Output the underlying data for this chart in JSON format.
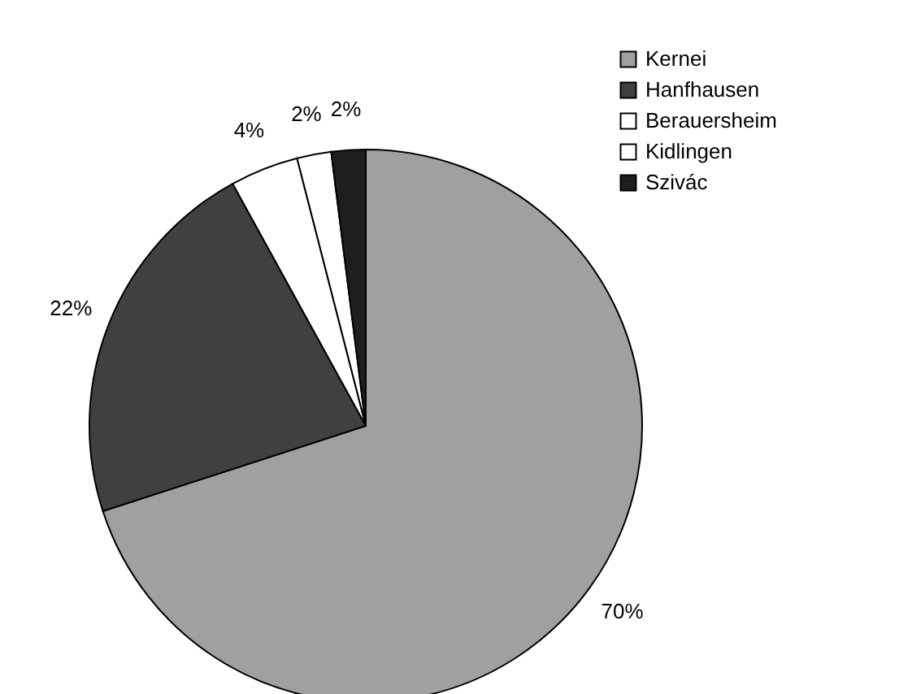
{
  "chart_data": {
    "type": "pie",
    "categories": [
      "Kernei",
      "Hanfhausen",
      "Berauersheim",
      "Kidlingen",
      "Szivác"
    ],
    "values": [
      70,
      22,
      4,
      2,
      2
    ],
    "colors": [
      "#a0a0a0",
      "#404040",
      "#ffffff",
      "#ffffff",
      "#1e1e1e"
    ],
    "value_labels": [
      "70%",
      "22%",
      "4%",
      "2%",
      "2%"
    ],
    "legend": "top right"
  }
}
